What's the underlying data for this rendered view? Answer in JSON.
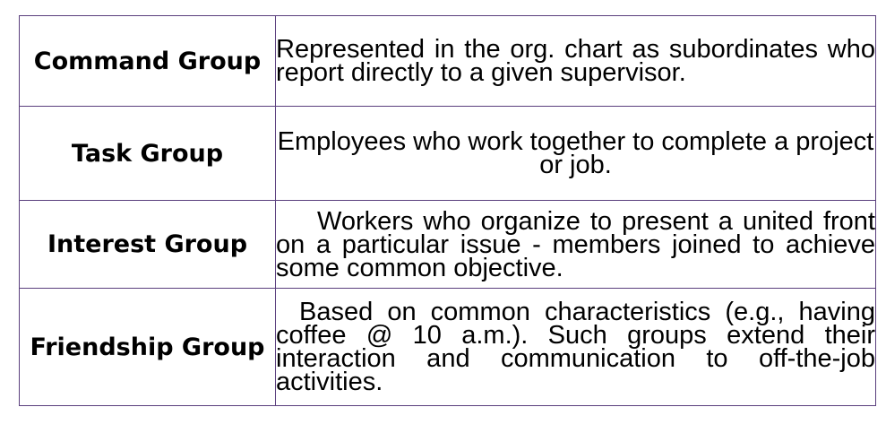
{
  "groups": [
    {
      "name": "Command Group",
      "description": "Represented in the org. chart as subordinates who report directly to a given supervisor."
    },
    {
      "name": "Task Group",
      "description": "Employees who work together to complete a project or job."
    },
    {
      "name": "Interest Group",
      "description": "Workers who organize to present a united front on a particular issue - members joined to achieve some common objective."
    },
    {
      "name": "Friendship Group",
      "description": "Based on common characteristics (e.g., having coffee @ 10 a.m.). Such groups extend their interaction and communication to off-the-job activities."
    }
  ],
  "colors": {
    "border": "#5a3f7d",
    "text": "#000000",
    "background": "#ffffff"
  }
}
